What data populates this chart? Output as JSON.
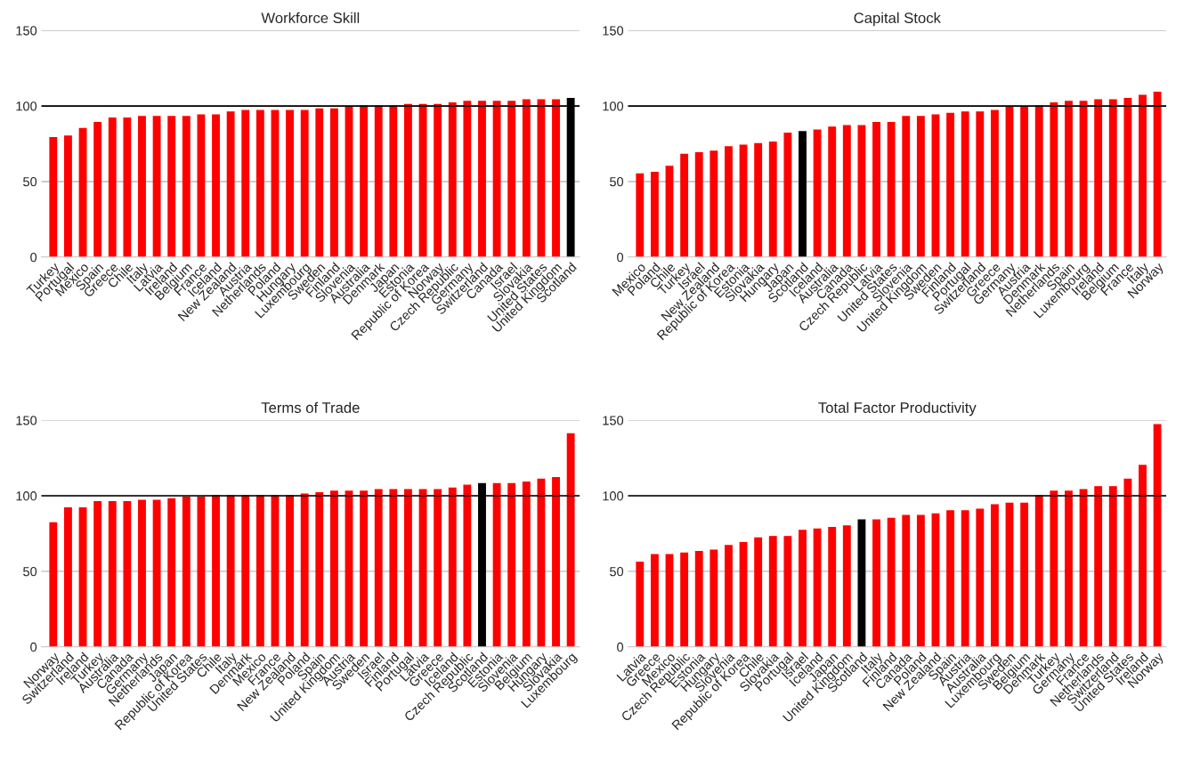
{
  "chart_data": [
    {
      "type": "bar",
      "title": "Workforce Skill",
      "categories": [
        "Turkey",
        "Portugal",
        "Mexico",
        "Spain",
        "Greece",
        "Chile",
        "Italy",
        "Latvia",
        "Ireland",
        "Belgium",
        "France",
        "Iceland",
        "New Zealand",
        "Austria",
        "Netherlands",
        "Poland",
        "Hungary",
        "Luxembourg",
        "Sweden",
        "Finland",
        "Slovenia",
        "Australia",
        "Denmark",
        "Japan",
        "Estonia",
        "Republic of Korea",
        "Norway",
        "Czech Republic",
        "Germany",
        "Switzerland",
        "Canada",
        "Israel",
        "Slovakia",
        "United States",
        "United Kingdom",
        "Scotland"
      ],
      "values": [
        79,
        80,
        85,
        89,
        92,
        92,
        93,
        93,
        93,
        93,
        94,
        94,
        96,
        97,
        97,
        97,
        97,
        97,
        98,
        98,
        99,
        100,
        100,
        100,
        101,
        101,
        101,
        102,
        103,
        103,
        103,
        103,
        104,
        104,
        104,
        105
      ],
      "colors": [
        "#ff0000",
        "#ff0000",
        "#ff0000",
        "#ff0000",
        "#ff0000",
        "#ff0000",
        "#ff0000",
        "#ff0000",
        "#ff0000",
        "#ff0000",
        "#ff0000",
        "#ff0000",
        "#ff0000",
        "#ff0000",
        "#ff0000",
        "#ff0000",
        "#ff0000",
        "#ff0000",
        "#ff0000",
        "#ff0000",
        "#ff0000",
        "#ff0000",
        "#ff0000",
        "#ff0000",
        "#ff0000",
        "#ff0000",
        "#ff0000",
        "#ff0000",
        "#ff0000",
        "#ff0000",
        "#ff0000",
        "#ff0000",
        "#ff0000",
        "#ff0000",
        "#ff0000",
        "#000000"
      ],
      "ylim": [
        0,
        150
      ],
      "yticks": [
        0,
        50,
        100,
        150
      ],
      "grid": "y",
      "ref_lines": [
        {
          "axis": "y",
          "value": 100,
          "color": "#000000"
        }
      ]
    },
    {
      "type": "bar",
      "title": "Capital Stock",
      "categories": [
        "Mexico",
        "Poland",
        "Chile",
        "Turkey",
        "Israel",
        "New Zealand",
        "Republic of Korea",
        "Estonia",
        "Slovakia",
        "Hungary",
        "Japan",
        "Scotland",
        "Iceland",
        "Australia",
        "Canada",
        "Czech Republic",
        "Latvia",
        "United States",
        "Slovenia",
        "United Kingdom",
        "Sweden",
        "Finland",
        "Portugal",
        "Switzerland",
        "Greece",
        "Germany",
        "Austria",
        "Denmark",
        "Netherlands",
        "Spain",
        "Luxembourg",
        "Ireland",
        "Belgium",
        "France",
        "Italy",
        "Norway"
      ],
      "values": [
        55,
        56,
        60,
        68,
        69,
        70,
        73,
        74,
        75,
        76,
        82,
        83,
        84,
        86,
        87,
        87,
        89,
        89,
        93,
        93,
        94,
        95,
        96,
        96,
        97,
        99,
        99,
        100,
        102,
        103,
        103,
        104,
        104,
        105,
        107,
        109
      ],
      "colors": [
        "#ff0000",
        "#ff0000",
        "#ff0000",
        "#ff0000",
        "#ff0000",
        "#ff0000",
        "#ff0000",
        "#ff0000",
        "#ff0000",
        "#ff0000",
        "#ff0000",
        "#000000",
        "#ff0000",
        "#ff0000",
        "#ff0000",
        "#ff0000",
        "#ff0000",
        "#ff0000",
        "#ff0000",
        "#ff0000",
        "#ff0000",
        "#ff0000",
        "#ff0000",
        "#ff0000",
        "#ff0000",
        "#ff0000",
        "#ff0000",
        "#ff0000",
        "#ff0000",
        "#ff0000",
        "#ff0000",
        "#ff0000",
        "#ff0000",
        "#ff0000",
        "#ff0000",
        "#ff0000"
      ],
      "ylim": [
        0,
        150
      ],
      "yticks": [
        0,
        50,
        100,
        150
      ],
      "grid": "y",
      "ref_lines": [
        {
          "axis": "y",
          "value": 100,
          "color": "#000000"
        }
      ]
    },
    {
      "type": "bar",
      "title": "Terms of Trade",
      "categories": [
        "Norway",
        "Switzerland",
        "Ireland",
        "Turkey",
        "Australia",
        "Canada",
        "Germany",
        "Netherlands",
        "Japan",
        "Republic of Korea",
        "United States",
        "Chile",
        "Italy",
        "Denmark",
        "Mexico",
        "France",
        "New Zealand",
        "Poland",
        "Spain",
        "United Kingdom",
        "Austria",
        "Sweden",
        "Israel",
        "Finland",
        "Portugal",
        "Latvia",
        "Greece",
        "Iceland",
        "Czech Republic",
        "Scotland",
        "Estonia",
        "Slovenia",
        "Belgium",
        "Hungary",
        "Slovakia",
        "Luxembourg"
      ],
      "values": [
        82,
        92,
        92,
        96,
        96,
        96,
        97,
        97,
        98,
        99,
        99,
        100,
        100,
        100,
        100,
        100,
        100,
        101,
        102,
        103,
        103,
        103,
        104,
        104,
        104,
        104,
        104,
        105,
        107,
        108,
        108,
        108,
        109,
        111,
        112,
        141
      ],
      "colors": [
        "#ff0000",
        "#ff0000",
        "#ff0000",
        "#ff0000",
        "#ff0000",
        "#ff0000",
        "#ff0000",
        "#ff0000",
        "#ff0000",
        "#ff0000",
        "#ff0000",
        "#ff0000",
        "#ff0000",
        "#ff0000",
        "#ff0000",
        "#ff0000",
        "#ff0000",
        "#ff0000",
        "#ff0000",
        "#ff0000",
        "#ff0000",
        "#ff0000",
        "#ff0000",
        "#ff0000",
        "#ff0000",
        "#ff0000",
        "#ff0000",
        "#ff0000",
        "#ff0000",
        "#000000",
        "#ff0000",
        "#ff0000",
        "#ff0000",
        "#ff0000",
        "#ff0000",
        "#ff0000"
      ],
      "ylim": [
        0,
        150
      ],
      "yticks": [
        0,
        50,
        100,
        150
      ],
      "grid": "y",
      "ref_lines": [
        {
          "axis": "y",
          "value": 100,
          "color": "#000000"
        }
      ]
    },
    {
      "type": "bar",
      "title": "Total Factor Productivity",
      "categories": [
        "Latvia",
        "Greece",
        "Mexico",
        "Czech Republic",
        "Estonia",
        "Hungary",
        "Slovenia",
        "Republic of Korea",
        "Chile",
        "Slovakia",
        "Portugal",
        "Israel",
        "Iceland",
        "Japan",
        "United Kingdom",
        "Scotland",
        "Italy",
        "Finland",
        "Canada",
        "Poland",
        "New Zealand",
        "Spain",
        "Austria",
        "Australia",
        "Luxembourg",
        "Sweden",
        "Belgium",
        "Denmark",
        "Turkey",
        "Germany",
        "France",
        "Netherlands",
        "Switzerland",
        "United States",
        "Ireland",
        "Norway"
      ],
      "values": [
        56,
        61,
        61,
        62,
        63,
        64,
        67,
        69,
        72,
        73,
        73,
        77,
        78,
        79,
        80,
        84,
        84,
        85,
        87,
        87,
        88,
        90,
        90,
        91,
        94,
        95,
        95,
        100,
        103,
        103,
        104,
        106,
        106,
        111,
        120,
        147
      ],
      "colors": [
        "#ff0000",
        "#ff0000",
        "#ff0000",
        "#ff0000",
        "#ff0000",
        "#ff0000",
        "#ff0000",
        "#ff0000",
        "#ff0000",
        "#ff0000",
        "#ff0000",
        "#ff0000",
        "#ff0000",
        "#ff0000",
        "#ff0000",
        "#000000",
        "#ff0000",
        "#ff0000",
        "#ff0000",
        "#ff0000",
        "#ff0000",
        "#ff0000",
        "#ff0000",
        "#ff0000",
        "#ff0000",
        "#ff0000",
        "#ff0000",
        "#ff0000",
        "#ff0000",
        "#ff0000",
        "#ff0000",
        "#ff0000",
        "#ff0000",
        "#ff0000",
        "#ff0000",
        "#ff0000"
      ],
      "ylim": [
        0,
        150
      ],
      "yticks": [
        0,
        50,
        100,
        150
      ],
      "grid": "y",
      "ref_lines": [
        {
          "axis": "y",
          "value": 100,
          "color": "#000000"
        }
      ]
    }
  ]
}
